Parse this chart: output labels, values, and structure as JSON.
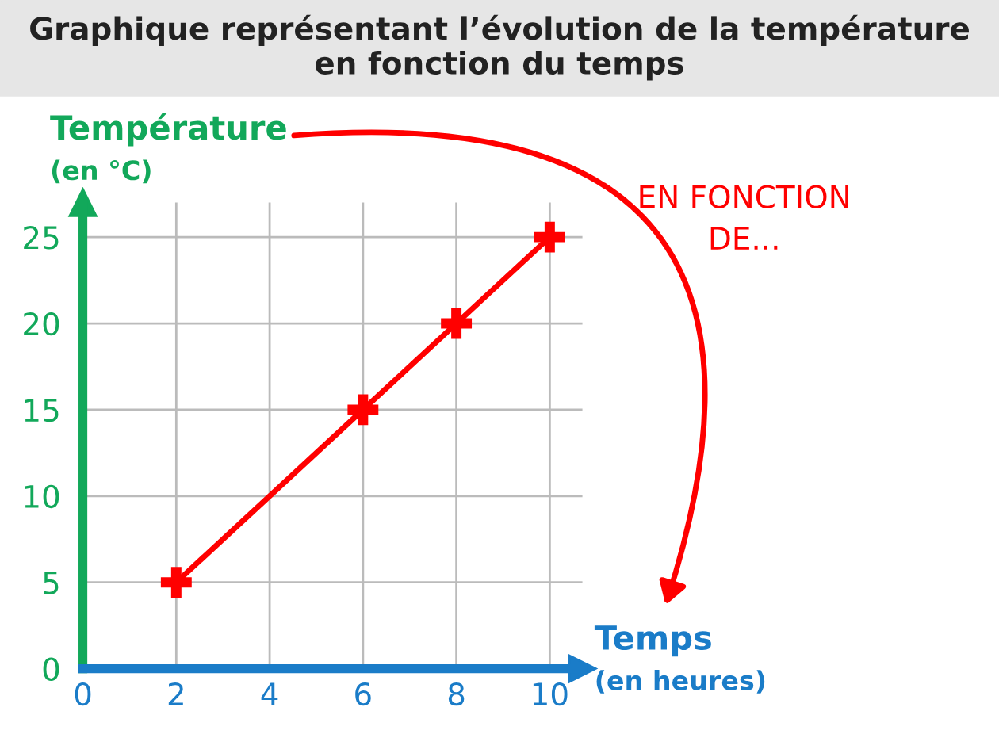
{
  "chart_data": {
    "type": "line",
    "title": "Graphique représentant l’évolution de la température\nen fonction du temps",
    "xlabel": "Temps\n(en heures)",
    "ylabel": "Température\n(en °C)",
    "x": [
      2,
      6,
      8,
      10
    ],
    "series": [
      {
        "color": "#ff0000",
        "values": [
          5,
          15,
          20,
          25
        ]
      }
    ],
    "xlim": [
      0,
      10.7
    ],
    "ylim": [
      0,
      27
    ],
    "xticks": [
      0,
      2,
      4,
      6,
      8,
      10
    ],
    "yticks": [
      0,
      5,
      10,
      15,
      20,
      25
    ],
    "grid": true,
    "marker": "cross",
    "line_style": "solid",
    "annotations": [
      "EN FONCTION\nDE..."
    ]
  }
}
